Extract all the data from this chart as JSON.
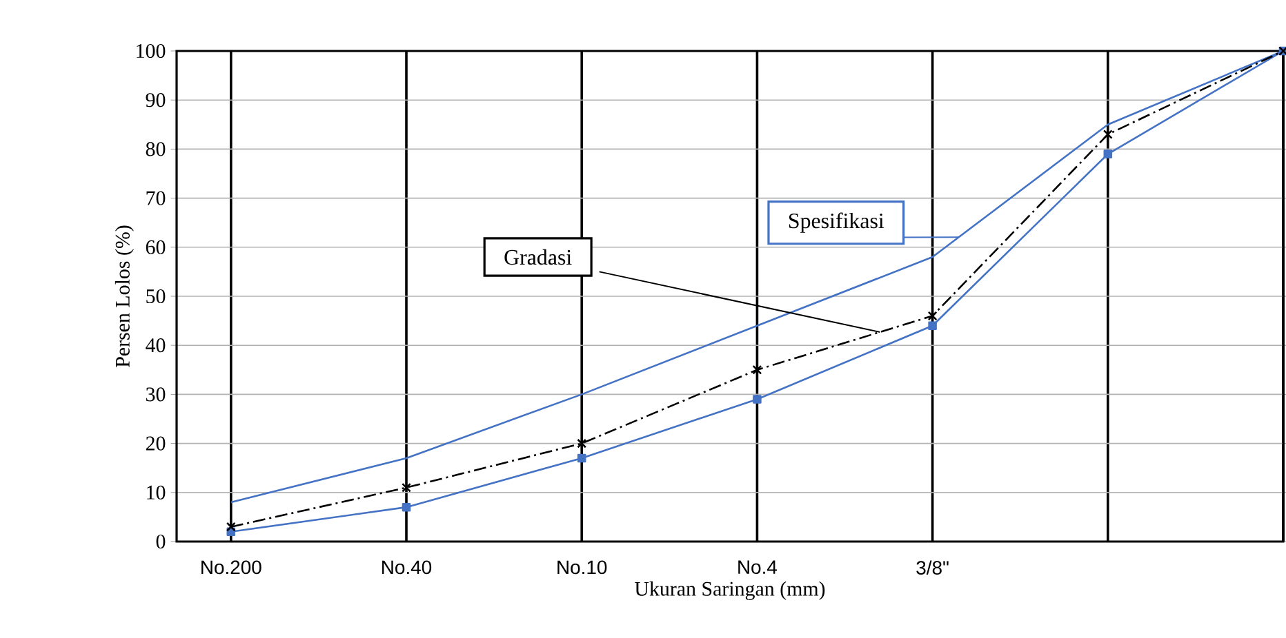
{
  "chart_data": {
    "type": "line",
    "xlabel": "Ukuran Saringan (mm)",
    "ylabel": "Persen Lolos (%)",
    "categories": [
      "No.200",
      "No.40",
      "No.10",
      "No.4",
      "3/8\"",
      null,
      null
    ],
    "ylim": [
      0,
      100
    ],
    "yticks": [
      0,
      10,
      20,
      30,
      40,
      50,
      60,
      70,
      80,
      90,
      100
    ],
    "grid": true,
    "series": [
      {
        "name": "Spesifikasi",
        "color": "#4472c4",
        "marker": "none",
        "line_style": "solid",
        "values": [
          8,
          17,
          30,
          44,
          58,
          85,
          100
        ]
      },
      {
        "color": "#4472c4",
        "marker": "square",
        "line_style": "solid",
        "values": [
          2,
          7,
          17,
          29,
          44,
          79,
          100
        ]
      },
      {
        "name": "Gradasi",
        "color": "#000000",
        "marker": "cross",
        "line_style": "dashdot",
        "values": [
          3,
          11,
          20,
          35,
          46,
          83,
          100
        ]
      }
    ]
  }
}
